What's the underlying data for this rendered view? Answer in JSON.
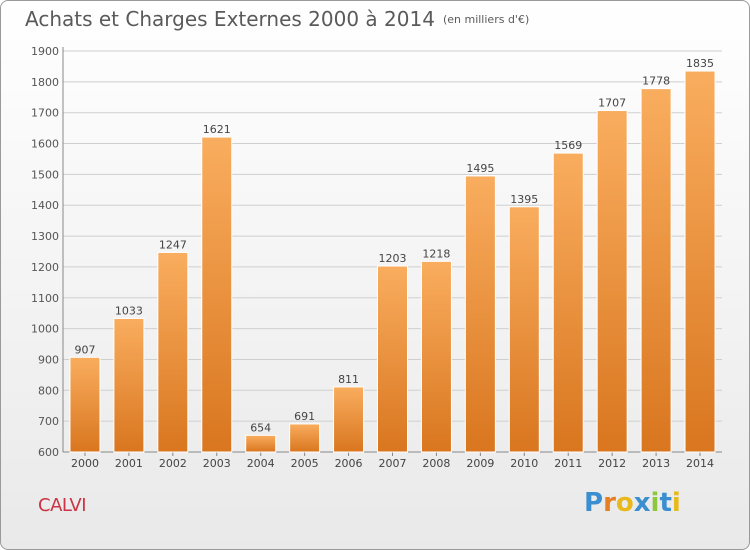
{
  "header": {
    "title": "Achats et Charges Externes 2000 à 2014",
    "subtitle": "(en milliers d'€)"
  },
  "footer": {
    "place": "CALVI",
    "logo": "Proxiti"
  },
  "colors": {
    "bar_light": "#f7a64f",
    "bar_dark": "#d8741c",
    "place": "#cc3344"
  },
  "chart_data": {
    "type": "bar",
    "title": "Achats et Charges Externes 2000 à 2014",
    "subtitle": "(en milliers d'€)",
    "categories": [
      "2000",
      "2001",
      "2002",
      "2003",
      "2004",
      "2005",
      "2006",
      "2007",
      "2008",
      "2009",
      "2010",
      "2011",
      "2012",
      "2013",
      "2014"
    ],
    "values": [
      907,
      1033,
      1247,
      1621,
      654,
      691,
      811,
      1203,
      1218,
      1495,
      1395,
      1569,
      1707,
      1778,
      1835
    ],
    "yticks": [
      600,
      700,
      800,
      900,
      1000,
      1100,
      1200,
      1300,
      1400,
      1500,
      1600,
      1700,
      1800,
      1900
    ],
    "ylim": [
      600,
      1900
    ],
    "grid": true,
    "xlabel": "",
    "ylabel": ""
  }
}
